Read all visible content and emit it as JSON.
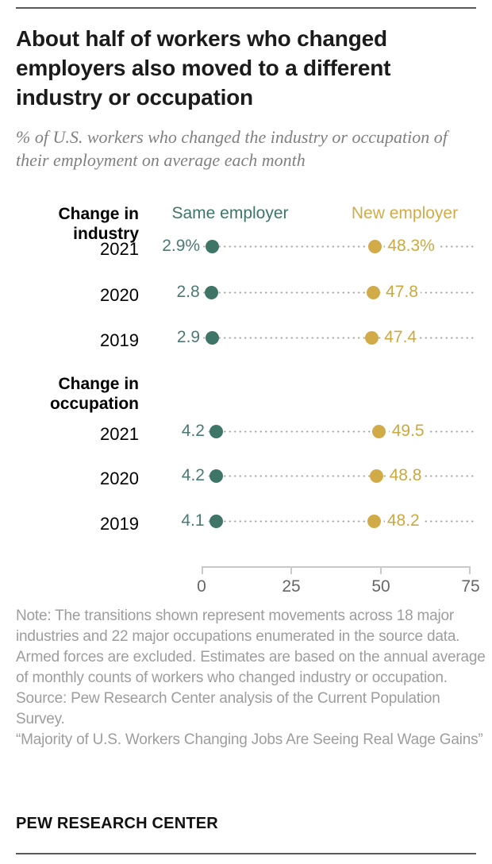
{
  "header": {
    "title": "About half of workers who changed employers also moved to a different industry or occupation",
    "subtitle": "% of U.S. workers who changed the industry or occupation of their employment on average each month"
  },
  "chart_data": {
    "type": "scatter",
    "variant": "dumbbell-dot-plot",
    "title": "About half of workers who changed employers also moved to a different industry or occupation",
    "xlabel": "",
    "ylabel": "",
    "xlim": [
      0,
      75
    ],
    "x_ticks": [
      "0",
      "25",
      "50",
      "75"
    ],
    "grid": false,
    "legend_position": "top",
    "series": [
      {
        "name": "Same employer",
        "color": "#3e7567",
        "text_color": "#4b7a74"
      },
      {
        "name": "New employer",
        "color": "#d2ab49",
        "text_color": "#cda73f"
      }
    ],
    "groups": [
      {
        "label_lines": [
          "Change in",
          "industry"
        ],
        "rows": [
          {
            "year": "2021",
            "same": 2.9,
            "new": 48.3,
            "same_label": "2.9%",
            "new_label": "48.3%"
          },
          {
            "year": "2020",
            "same": 2.8,
            "new": 47.8,
            "same_label": "2.8",
            "new_label": "47.8"
          },
          {
            "year": "2019",
            "same": 2.9,
            "new": 47.4,
            "same_label": "2.9",
            "new_label": "47.4"
          }
        ]
      },
      {
        "label_lines": [
          "Change in",
          "occupation"
        ],
        "rows": [
          {
            "year": "2021",
            "same": 4.2,
            "new": 49.5,
            "same_label": "4.2",
            "new_label": "49.5"
          },
          {
            "year": "2020",
            "same": 4.2,
            "new": 48.8,
            "same_label": "4.2",
            "new_label": "48.8"
          },
          {
            "year": "2019",
            "same": 4.1,
            "new": 48.2,
            "same_label": "4.1",
            "new_label": "48.2"
          }
        ]
      }
    ]
  },
  "colors": {
    "teal": "#3e7567",
    "gold": "#d2ab49",
    "dotted_line": "#ababab",
    "axis_line": "#c9c9c9",
    "axis_label": "#666666",
    "note_gray": "#9d9d9d",
    "rule_gray": "#595959"
  },
  "footer_block": {
    "note": "Note: The transitions shown represent movements across 18 major industries and 22 major occupations enumerated in the source data. Armed forces are excluded.  Estimates are based on the annual average of monthly counts of workers who changed industry or occupation.",
    "source": "Source: Pew Research Center analysis of the Current Population Survey.",
    "quote": "“Majority of U.S. Workers Changing Jobs Are Seeing Real Wage Gains”",
    "wordmark": "PEW RESEARCH CENTER"
  }
}
